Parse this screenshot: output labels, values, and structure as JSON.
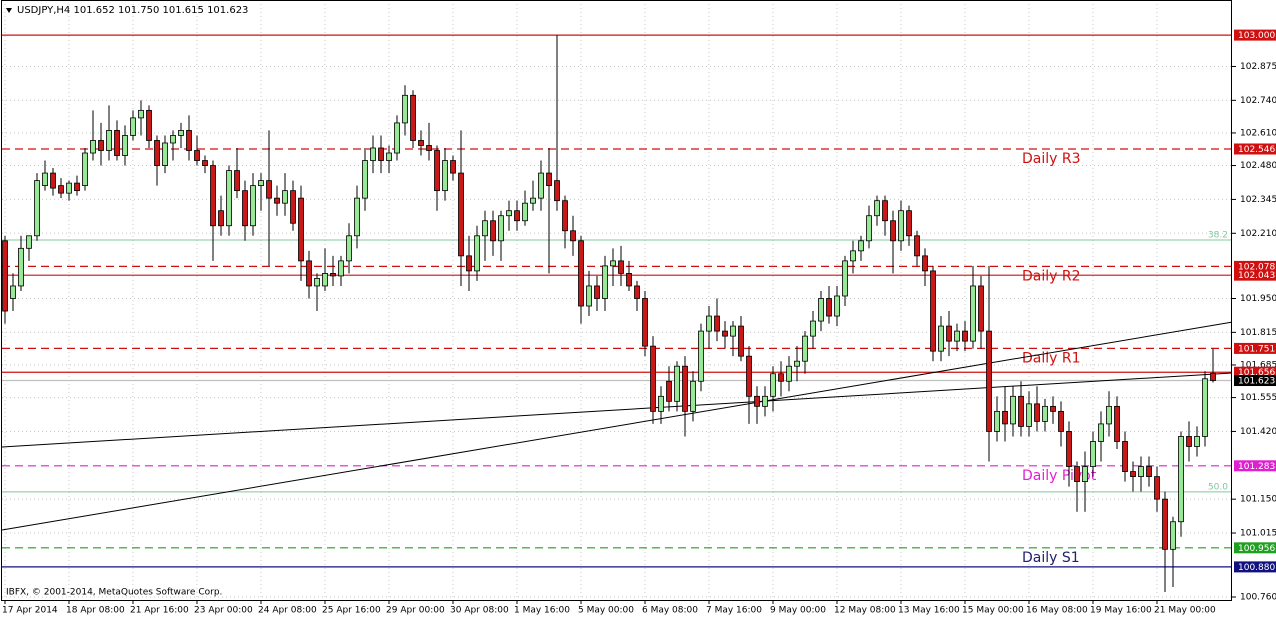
{
  "chart_data": {
    "type": "candlestick",
    "header": "USDJPY,H4  101.652 101.750 101.615 101.623",
    "copyright": "IBFX, © 2001-2014, MetaQuotes Software Corp.",
    "up_color": "#98e898",
    "down_color": "#c81818",
    "grid": true,
    "ylim": [
      100.748,
      103.14
    ],
    "yticks": [
      102.875,
      {
        "value": 102.74,
        "label": "102.740"
      },
      {
        "value": 102.61,
        "label": "102.610"
      },
      {
        "value": 102.48,
        "label": "102.480"
      },
      102.345,
      {
        "value": 102.21,
        "label": "102.210"
      },
      {
        "value": 101.95,
        "label": "101.950"
      },
      101.815,
      101.685,
      101.555,
      {
        "value": 101.42,
        "label": "101.420"
      },
      {
        "value": 101.15,
        "label": "101.150"
      },
      101.015,
      {
        "value": 100.76,
        "label": "100.760"
      }
    ],
    "categories": [
      "17 Apr 2014",
      null,
      null,
      null,
      null,
      null,
      null,
      null,
      "18 Apr 08:00",
      null,
      null,
      null,
      null,
      null,
      null,
      null,
      "21 Apr 16:00",
      null,
      null,
      null,
      null,
      null,
      null,
      null,
      "23 Apr 00:00",
      null,
      null,
      null,
      null,
      null,
      null,
      null,
      "24 Apr 08:00",
      null,
      null,
      null,
      null,
      null,
      null,
      null,
      "25 Apr 16:00",
      null,
      null,
      null,
      null,
      null,
      null,
      null,
      "29 Apr 00:00",
      null,
      null,
      null,
      null,
      null,
      null,
      null,
      "30 Apr 08:00",
      null,
      null,
      null,
      null,
      null,
      null,
      null,
      "1 May 16:00",
      null,
      null,
      null,
      null,
      null,
      null,
      null,
      "5 May 00:00",
      null,
      null,
      null,
      null,
      null,
      null,
      null,
      "6 May 08:00",
      null,
      null,
      null,
      null,
      null,
      null,
      null,
      "7 May 16:00",
      null,
      null,
      null,
      null,
      null,
      null,
      null,
      "9 May 00:00",
      null,
      null,
      null,
      null,
      null,
      null,
      null,
      "12 May 08:00",
      null,
      null,
      null,
      null,
      null,
      null,
      null,
      "13 May 16:00",
      null,
      null,
      null,
      null,
      null,
      null,
      null,
      "15 May 00:00",
      null,
      null,
      null,
      null,
      null,
      null,
      null,
      "16 May 08:00",
      null,
      null,
      null,
      null,
      null,
      null,
      null,
      "19 May 16:00",
      null,
      null,
      null,
      null,
      null,
      null,
      null,
      "21 May 00:00",
      null,
      null,
      null,
      null,
      null,
      null,
      null
    ],
    "ohlc": [
      [
        102.18,
        102.2,
        101.85,
        101.9
      ],
      [
        101.95,
        102.05,
        101.9,
        102.0
      ],
      [
        102.0,
        102.2,
        101.98,
        102.15
      ],
      [
        102.15,
        102.2,
        102.1,
        102.2
      ],
      [
        102.2,
        102.45,
        102.18,
        102.42
      ],
      [
        102.4,
        102.5,
        102.38,
        102.45
      ],
      [
        102.45,
        102.47,
        102.36,
        102.39
      ],
      [
        102.4,
        102.43,
        102.35,
        102.37
      ],
      [
        102.37,
        102.42,
        102.34,
        102.41
      ],
      [
        102.41,
        102.44,
        102.36,
        102.38
      ],
      [
        102.4,
        102.55,
        102.38,
        102.53
      ],
      [
        102.53,
        102.7,
        102.5,
        102.58
      ],
      [
        102.58,
        102.65,
        102.48,
        102.54
      ],
      [
        102.54,
        102.72,
        102.5,
        102.62
      ],
      [
        102.62,
        102.66,
        102.5,
        102.52
      ],
      [
        102.52,
        102.64,
        102.48,
        102.6
      ],
      [
        102.6,
        102.7,
        102.58,
        102.67
      ],
      [
        102.67,
        102.74,
        102.6,
        102.7
      ],
      [
        102.7,
        102.72,
        102.55,
        102.58
      ],
      [
        102.58,
        102.6,
        102.4,
        102.48
      ],
      [
        102.48,
        102.6,
        102.45,
        102.57
      ],
      [
        102.57,
        102.62,
        102.5,
        102.6
      ],
      [
        102.6,
        102.65,
        102.55,
        102.62
      ],
      [
        102.62,
        102.68,
        102.5,
        102.54
      ],
      [
        102.54,
        102.6,
        102.48,
        102.5
      ],
      [
        102.5,
        102.52,
        102.45,
        102.48
      ],
      [
        102.48,
        102.5,
        102.1,
        102.24
      ],
      [
        102.3,
        102.36,
        102.2,
        102.24
      ],
      [
        102.24,
        102.48,
        102.2,
        102.46
      ],
      [
        102.46,
        102.55,
        102.35,
        102.38
      ],
      [
        102.38,
        102.42,
        102.18,
        102.24
      ],
      [
        102.24,
        102.45,
        102.2,
        102.4
      ],
      [
        102.4,
        102.45,
        102.3,
        102.42
      ],
      [
        102.42,
        102.62,
        102.08,
        102.35
      ],
      [
        102.35,
        102.4,
        102.28,
        102.33
      ],
      [
        102.33,
        102.45,
        102.28,
        102.38
      ],
      [
        102.38,
        102.42,
        102.22,
        102.25
      ],
      [
        102.35,
        102.4,
        102.02,
        102.1
      ],
      [
        102.1,
        102.14,
        101.95,
        102.0
      ],
      [
        102.0,
        102.05,
        101.9,
        102.03
      ],
      [
        102.0,
        102.15,
        101.98,
        102.05
      ],
      [
        102.05,
        102.12,
        102.0,
        102.04
      ],
      [
        102.04,
        102.12,
        102.0,
        102.1
      ],
      [
        102.1,
        102.25,
        102.05,
        102.2
      ],
      [
        102.2,
        102.4,
        102.15,
        102.35
      ],
      [
        102.35,
        102.55,
        102.3,
        102.5
      ],
      [
        102.5,
        102.6,
        102.45,
        102.55
      ],
      [
        102.55,
        102.6,
        102.45,
        102.5
      ],
      [
        102.5,
        102.56,
        102.45,
        102.53
      ],
      [
        102.53,
        102.68,
        102.5,
        102.65
      ],
      [
        102.65,
        102.8,
        102.6,
        102.76
      ],
      [
        102.76,
        102.78,
        102.55,
        102.58
      ],
      [
        102.58,
        102.62,
        102.52,
        102.56
      ],
      [
        102.56,
        102.65,
        102.5,
        102.54
      ],
      [
        102.54,
        102.56,
        102.3,
        102.38
      ],
      [
        102.38,
        102.55,
        102.34,
        102.5
      ],
      [
        102.5,
        102.52,
        102.42,
        102.45
      ],
      [
        102.45,
        102.62,
        102.0,
        102.12
      ],
      [
        102.12,
        102.2,
        101.98,
        102.06
      ],
      [
        102.06,
        102.24,
        102.02,
        102.2
      ],
      [
        102.2,
        102.3,
        102.1,
        102.26
      ],
      [
        102.26,
        102.3,
        102.12,
        102.18
      ],
      [
        102.18,
        102.3,
        102.1,
        102.28
      ],
      [
        102.28,
        102.34,
        102.22,
        102.3
      ],
      [
        102.3,
        102.34,
        102.22,
        102.26
      ],
      [
        102.26,
        102.38,
        102.24,
        102.33
      ],
      [
        102.33,
        102.42,
        102.3,
        102.35
      ],
      [
        102.35,
        102.5,
        102.3,
        102.45
      ],
      [
        102.45,
        102.55,
        102.05,
        102.4
      ],
      [
        102.42,
        103.0,
        102.3,
        102.34
      ],
      [
        102.34,
        102.36,
        102.15,
        102.22
      ],
      [
        102.22,
        102.28,
        102.12,
        102.18
      ],
      [
        102.18,
        102.2,
        101.85,
        101.92
      ],
      [
        101.92,
        102.06,
        101.88,
        102.0
      ],
      [
        102.0,
        102.04,
        101.9,
        101.95
      ],
      [
        101.95,
        102.12,
        101.9,
        102.08
      ],
      [
        102.08,
        102.15,
        102.0,
        102.1
      ],
      [
        102.1,
        102.16,
        102.0,
        102.05
      ],
      [
        102.05,
        102.1,
        101.98,
        102.0
      ],
      [
        102.0,
        102.02,
        101.9,
        101.95
      ],
      [
        101.95,
        101.98,
        101.72,
        101.76
      ],
      [
        101.76,
        101.8,
        101.45,
        101.5
      ],
      [
        101.5,
        101.6,
        101.45,
        101.56
      ],
      [
        101.62,
        101.68,
        101.5,
        101.54
      ],
      [
        101.54,
        101.7,
        101.5,
        101.68
      ],
      [
        101.68,
        101.72,
        101.4,
        101.5
      ],
      [
        101.5,
        101.66,
        101.46,
        101.62
      ],
      [
        101.62,
        101.85,
        101.58,
        101.82
      ],
      [
        101.82,
        101.92,
        101.75,
        101.88
      ],
      [
        101.88,
        101.95,
        101.78,
        101.82
      ],
      [
        101.82,
        101.86,
        101.75,
        101.8
      ],
      [
        101.8,
        101.86,
        101.72,
        101.84
      ],
      [
        101.84,
        101.88,
        101.7,
        101.72
      ],
      [
        101.72,
        101.76,
        101.45,
        101.56
      ],
      [
        101.56,
        101.6,
        101.45,
        101.52
      ],
      [
        101.52,
        101.6,
        101.48,
        101.56
      ],
      [
        101.56,
        101.68,
        101.5,
        101.65
      ],
      [
        101.65,
        101.7,
        101.56,
        101.62
      ],
      [
        101.62,
        101.72,
        101.58,
        101.68
      ],
      [
        101.68,
        101.76,
        101.62,
        101.7
      ],
      [
        101.7,
        101.82,
        101.65,
        101.8
      ],
      [
        101.8,
        101.9,
        101.75,
        101.86
      ],
      [
        101.86,
        101.98,
        101.82,
        101.95
      ],
      [
        101.95,
        102.0,
        101.85,
        101.88
      ],
      [
        101.88,
        102.0,
        101.84,
        101.96
      ],
      [
        101.96,
        102.12,
        101.92,
        102.1
      ],
      [
        102.1,
        102.18,
        102.05,
        102.14
      ],
      [
        102.14,
        102.2,
        102.1,
        102.18
      ],
      [
        102.18,
        102.32,
        102.15,
        102.28
      ],
      [
        102.28,
        102.36,
        102.24,
        102.34
      ],
      [
        102.34,
        102.36,
        102.2,
        102.26
      ],
      [
        102.26,
        102.3,
        102.05,
        102.18
      ],
      [
        102.18,
        102.34,
        102.14,
        102.3
      ],
      [
        102.3,
        102.32,
        102.16,
        102.2
      ],
      [
        102.2,
        102.22,
        102.08,
        102.12
      ],
      [
        102.12,
        102.15,
        102.0,
        102.06
      ],
      [
        102.06,
        102.08,
        101.7,
        101.74
      ],
      [
        101.74,
        101.88,
        101.7,
        101.84
      ],
      [
        101.84,
        101.9,
        101.72,
        101.78
      ],
      [
        101.78,
        101.85,
        101.74,
        101.82
      ],
      [
        101.82,
        101.86,
        101.74,
        101.78
      ],
      [
        101.78,
        102.08,
        101.75,
        102.0
      ],
      [
        102.0,
        102.04,
        101.75,
        101.82
      ],
      [
        101.82,
        102.08,
        101.3,
        101.42
      ],
      [
        101.42,
        101.56,
        101.38,
        101.5
      ],
      [
        101.5,
        101.6,
        101.38,
        101.45
      ],
      [
        101.45,
        101.6,
        101.4,
        101.56
      ],
      [
        101.56,
        101.62,
        101.4,
        101.44
      ],
      [
        101.44,
        101.58,
        101.4,
        101.53
      ],
      [
        101.53,
        101.6,
        101.42,
        101.46
      ],
      [
        101.46,
        101.55,
        101.42,
        101.52
      ],
      [
        101.52,
        101.56,
        101.45,
        101.5
      ],
      [
        101.5,
        101.54,
        101.36,
        101.42
      ],
      [
        101.42,
        101.46,
        101.2,
        101.28
      ],
      [
        101.28,
        101.3,
        101.1,
        101.22
      ],
      [
        101.22,
        101.34,
        101.1,
        101.28
      ],
      [
        101.28,
        101.42,
        101.24,
        101.38
      ],
      [
        101.38,
        101.5,
        101.3,
        101.45
      ],
      [
        101.45,
        101.58,
        101.4,
        101.52
      ],
      [
        101.52,
        101.56,
        101.35,
        101.38
      ],
      [
        101.38,
        101.42,
        101.22,
        101.26
      ],
      [
        101.26,
        101.3,
        101.18,
        101.24
      ],
      [
        101.24,
        101.32,
        101.18,
        101.28
      ],
      [
        101.28,
        101.32,
        101.2,
        101.24
      ],
      [
        101.24,
        101.28,
        101.1,
        101.15
      ],
      [
        101.15,
        101.18,
        100.78,
        100.95
      ],
      [
        100.95,
        101.08,
        100.8,
        101.06
      ],
      [
        101.06,
        101.42,
        101.0,
        101.4
      ],
      [
        101.4,
        101.46,
        101.3,
        101.36
      ],
      [
        101.36,
        101.44,
        101.32,
        101.4
      ],
      [
        101.4,
        101.66,
        101.36,
        101.63
      ],
      [
        101.652,
        101.75,
        101.615,
        101.623
      ]
    ],
    "levels": [
      {
        "value": 103,
        "label": "103.000",
        "color": "#d01010",
        "style": "solid"
      },
      {
        "value": 102.546,
        "color": "#d01010",
        "style": "dashed",
        "name": "Daily R3"
      },
      {
        "value": 102.078,
        "color": "#d01010",
        "style": "dashed",
        "name": "Daily R2"
      },
      {
        "value": 102.043,
        "color": "#d01010",
        "style": "solid"
      },
      {
        "value": 101.751,
        "color": "#d01010",
        "style": "dashed",
        "name": "Daily R1"
      },
      {
        "value": 101.656,
        "color": "#d01010",
        "style": "solid"
      },
      {
        "value": 101.623,
        "color": "#c0c0c0",
        "box_color": "#000000",
        "style": "solid"
      },
      {
        "value": 101.283,
        "color": "#e020d0",
        "style": "dashed",
        "name": "Daily Pivot"
      },
      {
        "value": 100.956,
        "color": "#20a020",
        "style": "dashed",
        "name": "Daily S1",
        "name_color": "#202070"
      },
      {
        "value": 100.88,
        "label": "100.880",
        "color": "#101080",
        "style": "solid"
      }
    ],
    "fib_levels": [
      {
        "label": "38.2",
        "value": 102.183,
        "color": "#80c8a0"
      },
      {
        "label": "50.0",
        "value": 101.179,
        "color": "#80c8a0"
      }
    ],
    "trendlines": [
      {
        "start": 101.358,
        "end": 101.653
      },
      {
        "start": 101.027,
        "end": 101.856
      }
    ]
  }
}
